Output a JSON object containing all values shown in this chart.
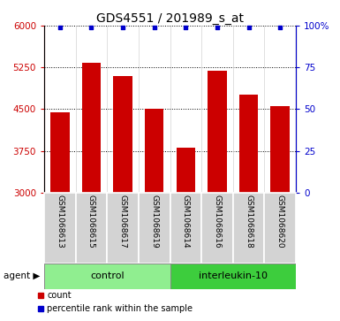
{
  "title": "GDS4551 / 201989_s_at",
  "categories": [
    "GSM1068613",
    "GSM1068615",
    "GSM1068617",
    "GSM1068619",
    "GSM1068614",
    "GSM1068616",
    "GSM1068618",
    "GSM1068620"
  ],
  "bar_values": [
    4440,
    5340,
    5100,
    4510,
    3810,
    5190,
    4760,
    4560
  ],
  "percentile_values": [
    99,
    99,
    99,
    99,
    99,
    99,
    99,
    99
  ],
  "bar_color": "#cc0000",
  "percentile_color": "#0000cc",
  "ylim_left": [
    3000,
    6000
  ],
  "ylim_right": [
    0,
    100
  ],
  "yticks_left": [
    3000,
    3750,
    4500,
    5250,
    6000
  ],
  "yticks_right": [
    0,
    25,
    50,
    75,
    100
  ],
  "ytick_labels_right": [
    "0",
    "25",
    "50",
    "75",
    "100%"
  ],
  "control_label": "control",
  "treatment_label": "interleukin-10",
  "agent_label": "agent",
  "legend_count": "count",
  "legend_percentile": "percentile rank within the sample",
  "control_color": "#90ee90",
  "treatment_color": "#3dcd3d",
  "group_bg_color": "#d3d3d3",
  "control_indices": [
    0,
    1,
    2,
    3
  ],
  "treatment_indices": [
    4,
    5,
    6,
    7
  ],
  "bar_width": 0.6,
  "figsize": [
    3.85,
    3.63
  ],
  "dpi": 100
}
